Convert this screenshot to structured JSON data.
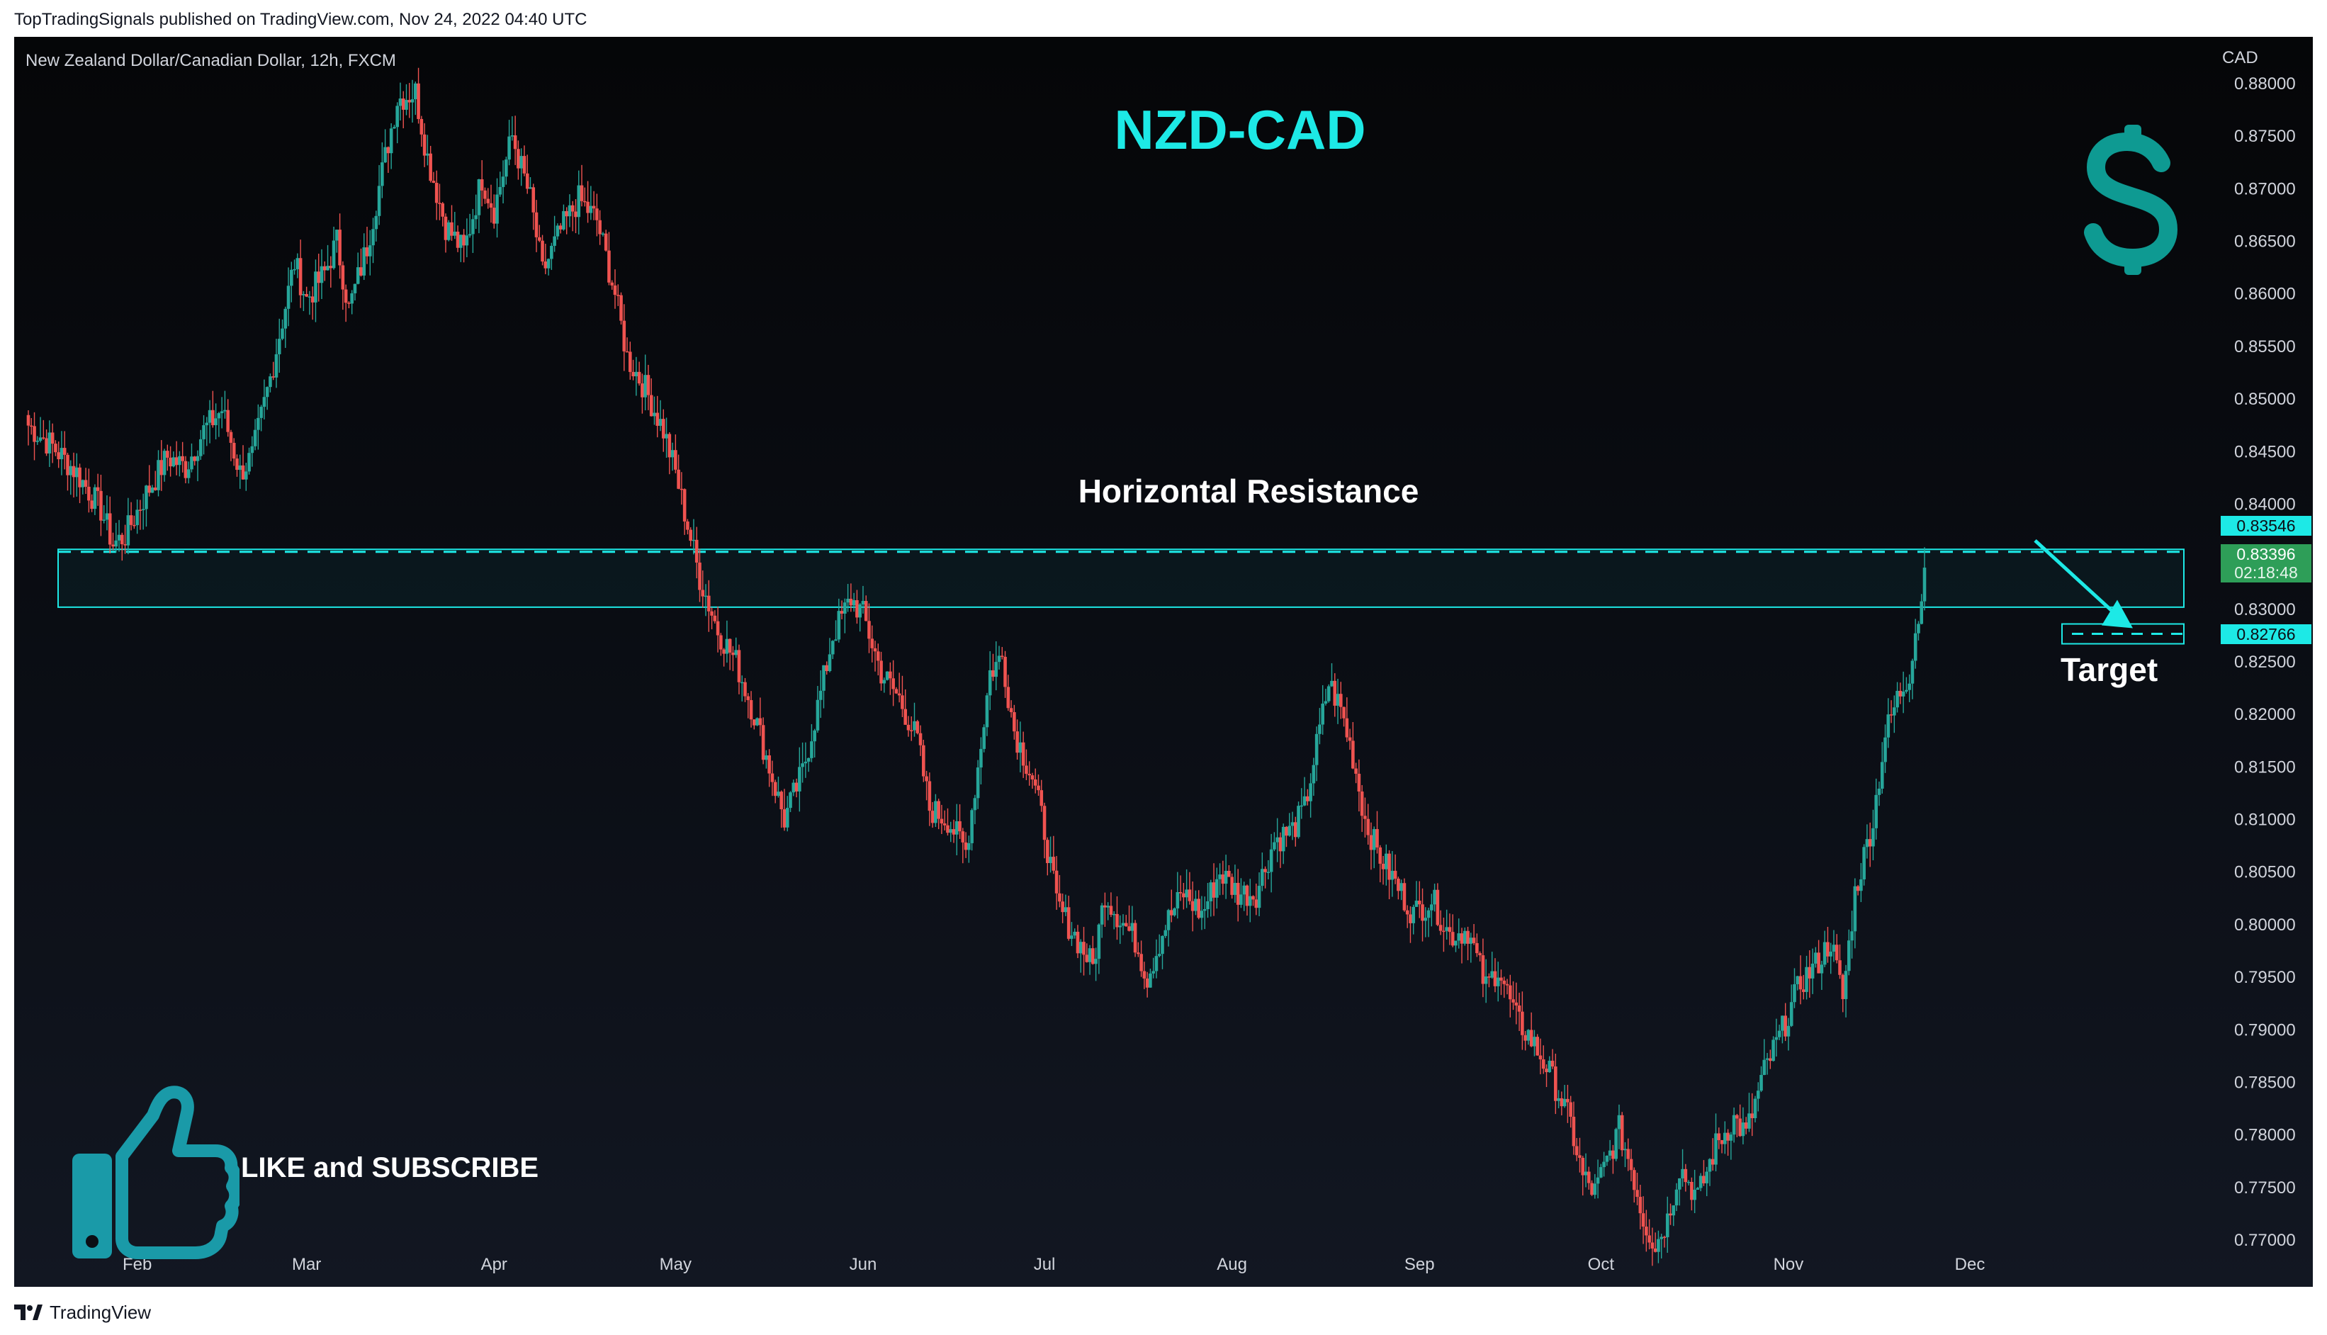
{
  "header": {
    "publisher_line": "TopTradingSignals published on TradingView.com, Nov 24, 2022 04:40 UTC"
  },
  "footer": {
    "brand": "TradingView"
  },
  "chart": {
    "symbol_line": "New Zealand Dollar/Canadian Dollar, 12h, FXCM",
    "currency": "CAD",
    "title": "NZD-CAD",
    "zone_label": "Horizontal Resistance",
    "target_label": "Target",
    "cta_text": "LIKE and SUBSCRIBE",
    "icons": {
      "dollar": "dollar-sign-icon",
      "thumb": "thumbs-up-icon",
      "logo": "tradingview-logo-icon"
    },
    "colors": {
      "up": "#26a69a",
      "down": "#ef5350",
      "accent": "#1de9e6",
      "last_price": "#2e9e58"
    }
  },
  "chart_data": {
    "type": "candlestick",
    "interval": "12h",
    "ylim": [
      0.7665,
      0.882
    ],
    "y_ticks": [
      "0.77000",
      "0.77500",
      "0.78000",
      "0.78500",
      "0.79000",
      "0.79500",
      "0.80000",
      "0.80500",
      "0.81000",
      "0.81500",
      "0.82000",
      "0.82500",
      "0.83000",
      "0.83500",
      "0.84000",
      "0.84500",
      "0.85000",
      "0.85500",
      "0.86000",
      "0.86500",
      "0.87000",
      "0.87500",
      "0.88000"
    ],
    "x_ticks": [
      "Feb",
      "Mar",
      "Apr",
      "May",
      "Jun",
      "Jul",
      "Aug",
      "Sep",
      "Oct",
      "Nov",
      "Dec"
    ],
    "x_tick_days": [
      32,
      60,
      91,
      121,
      152,
      182,
      213,
      244,
      274,
      305,
      335
    ],
    "x_range_days": [
      14,
      376
    ],
    "last_day": 327.5,
    "anchors": [
      [
        14,
        0.8475
      ],
      [
        18,
        0.8455
      ],
      [
        22,
        0.843
      ],
      [
        26,
        0.8395
      ],
      [
        28,
        0.8362
      ],
      [
        30,
        0.837
      ],
      [
        33,
        0.8405
      ],
      [
        37,
        0.8445
      ],
      [
        40,
        0.8435
      ],
      [
        43,
        0.847
      ],
      [
        46,
        0.849
      ],
      [
        49,
        0.843
      ],
      [
        51,
        0.8445
      ],
      [
        54,
        0.852
      ],
      [
        56,
        0.8575
      ],
      [
        58,
        0.863
      ],
      [
        60,
        0.8595
      ],
      [
        63,
        0.862
      ],
      [
        65,
        0.865
      ],
      [
        67,
        0.8585
      ],
      [
        70,
        0.8645
      ],
      [
        73,
        0.873
      ],
      [
        75,
        0.8785
      ],
      [
        78,
        0.8792
      ],
      [
        80,
        0.873
      ],
      [
        83,
        0.8665
      ],
      [
        86,
        0.864
      ],
      [
        89,
        0.871
      ],
      [
        91,
        0.868
      ],
      [
        94,
        0.875
      ],
      [
        97,
        0.869
      ],
      [
        99,
        0.862
      ],
      [
        102,
        0.866
      ],
      [
        105,
        0.869
      ],
      [
        108,
        0.867
      ],
      [
        111,
        0.86
      ],
      [
        113,
        0.854
      ],
      [
        116,
        0.851
      ],
      [
        119,
        0.847
      ],
      [
        121,
        0.843
      ],
      [
        123,
        0.838
      ],
      [
        125,
        0.833
      ],
      [
        128,
        0.828
      ],
      [
        131,
        0.825
      ],
      [
        134,
        0.82
      ],
      [
        137,
        0.814
      ],
      [
        139,
        0.81
      ],
      [
        142,
        0.8145
      ],
      [
        145,
        0.822
      ],
      [
        147,
        0.8275
      ],
      [
        150,
        0.831
      ],
      [
        152,
        0.8295
      ],
      [
        155,
        0.824
      ],
      [
        158,
        0.8215
      ],
      [
        161,
        0.8175
      ],
      [
        163,
        0.811
      ],
      [
        166,
        0.81
      ],
      [
        169,
        0.807
      ],
      [
        171,
        0.815
      ],
      [
        173,
        0.824
      ],
      [
        175,
        0.8255
      ],
      [
        177,
        0.8185
      ],
      [
        180,
        0.814
      ],
      [
        182,
        0.809
      ],
      [
        184,
        0.802
      ],
      [
        187,
        0.799
      ],
      [
        190,
        0.796
      ],
      [
        192,
        0.803
      ],
      [
        194,
        0.801
      ],
      [
        197,
        0.7985
      ],
      [
        199,
        0.795
      ],
      [
        202,
        0.8
      ],
      [
        205,
        0.803
      ],
      [
        208,
        0.801
      ],
      [
        211,
        0.805
      ],
      [
        214,
        0.803
      ],
      [
        217,
        0.803
      ],
      [
        220,
        0.808
      ],
      [
        223,
        0.809
      ],
      [
        225,
        0.811
      ],
      [
        227,
        0.817
      ],
      [
        229,
        0.823
      ],
      [
        231,
        0.8205
      ],
      [
        233,
        0.816
      ],
      [
        235,
        0.81
      ],
      [
        237,
        0.807
      ],
      [
        240,
        0.804
      ],
      [
        243,
        0.801
      ],
      [
        246,
        0.8025
      ],
      [
        249,
        0.799
      ],
      [
        252,
        0.7995
      ],
      [
        255,
        0.794
      ],
      [
        257,
        0.796
      ],
      [
        260,
        0.791
      ],
      [
        262,
        0.7895
      ],
      [
        265,
        0.7865
      ],
      [
        267,
        0.784
      ],
      [
        269,
        0.781
      ],
      [
        271,
        0.776
      ],
      [
        273,
        0.7745
      ],
      [
        275,
        0.7775
      ],
      [
        277,
        0.7805
      ],
      [
        279,
        0.777
      ],
      [
        281,
        0.772
      ],
      [
        283,
        0.7695
      ],
      [
        285,
        0.772
      ],
      [
        287,
        0.777
      ],
      [
        290,
        0.774
      ],
      [
        293,
        0.779
      ],
      [
        296,
        0.7815
      ],
      [
        298,
        0.78
      ],
      [
        301,
        0.786
      ],
      [
        304,
        0.79
      ],
      [
        307,
        0.7945
      ],
      [
        310,
        0.7965
      ],
      [
        312,
        0.7985
      ],
      [
        314,
        0.793
      ],
      [
        316,
        0.803
      ],
      [
        319,
        0.81
      ],
      [
        321,
        0.818
      ],
      [
        323,
        0.8215
      ],
      [
        325,
        0.824
      ],
      [
        326,
        0.828
      ],
      [
        327,
        0.8305
      ],
      [
        327.5,
        0.834
      ]
    ],
    "last_close": 0.83396,
    "annotations": {
      "resistance_zone": [
        0.8302,
        0.8357
      ],
      "resistance_line": "0.83546",
      "target_line": "0.82766",
      "last_price": "0.83396",
      "countdown": "02:18:48"
    },
    "grid": false,
    "legend": "none"
  }
}
